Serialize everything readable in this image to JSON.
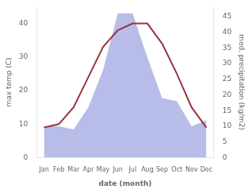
{
  "chart_data": {
    "type": "line",
    "categories": [
      "Jan",
      "Feb",
      "Mar",
      "Apr",
      "May",
      "Jun",
      "Jul",
      "Aug",
      "Sep",
      "Oct",
      "Nov",
      "Dec"
    ],
    "series": [
      {
        "type": "area",
        "color": "#b8bce8",
        "axis": "y2",
        "values": [
          10,
          10,
          9,
          16,
          28,
          46,
          46,
          32,
          19,
          18,
          10,
          12
        ]
      },
      {
        "type": "line",
        "color": "#993344",
        "values": [
          9,
          10,
          15,
          24,
          33,
          38,
          40,
          40,
          34,
          25,
          15,
          9
        ]
      }
    ],
    "xlabel": "date (month)",
    "ylabel": "max temp (C)",
    "y2label": "med. precipitation (kg/m2)",
    "ylim": [
      0,
      45
    ],
    "yticks": [
      0,
      10,
      20,
      30,
      40
    ],
    "y2lim": [
      0,
      48.125
    ],
    "y2ticks": [
      0,
      5,
      10,
      15,
      20,
      25,
      30,
      35,
      40,
      45
    ],
    "grid": false
  }
}
